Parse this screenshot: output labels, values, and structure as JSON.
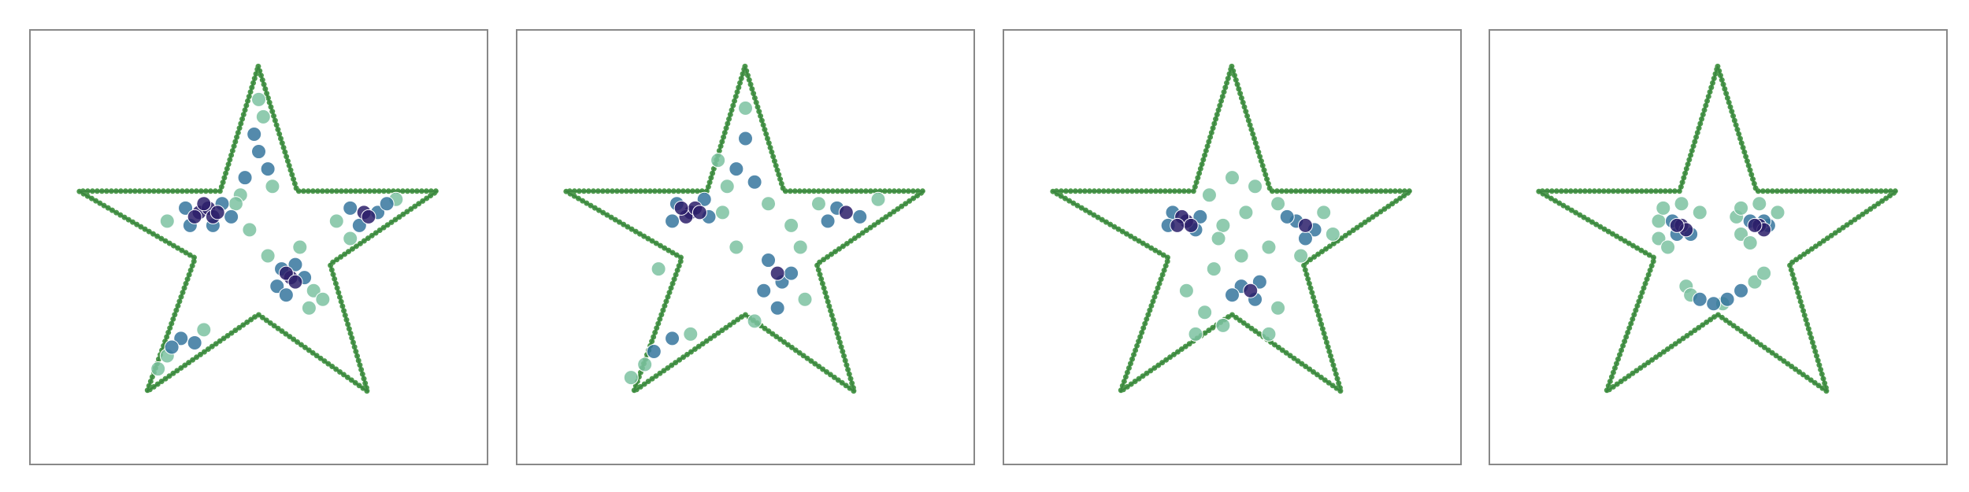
{
  "chart_data": [
    {
      "type": "scatter",
      "xlim": [
        0,
        100
      ],
      "ylim": [
        0,
        100
      ],
      "series": [
        {
          "color": "#2c1f6a",
          "x": [
            37,
            39,
            40,
            36,
            38,
            41,
            57,
            56,
            58,
            73,
            74
          ],
          "y": [
            58,
            59,
            57,
            57,
            60,
            58,
            43,
            44,
            42,
            58,
            57
          ]
        },
        {
          "color": "#36769d",
          "x": [
            34,
            42,
            44,
            35,
            40,
            47,
            50,
            49,
            52,
            55,
            60,
            54,
            58,
            56,
            70,
            76,
            72,
            78,
            33,
            36,
            31
          ],
          "y": [
            59,
            60,
            57,
            55,
            55,
            66,
            72,
            76,
            68,
            45,
            43,
            41,
            46,
            39,
            59,
            58,
            55,
            60,
            29,
            28,
            27
          ]
        },
        {
          "color": "#7dc2a1",
          "x": [
            30,
            46,
            51,
            53,
            48,
            62,
            61,
            64,
            52,
            67,
            80,
            70,
            30,
            38,
            28,
            45,
            50,
            59
          ],
          "y": [
            56,
            62,
            80,
            64,
            54,
            40,
            36,
            38,
            48,
            56,
            61,
            52,
            25,
            31,
            22,
            60,
            84,
            50
          ]
        }
      ]
    },
    {
      "type": "scatter",
      "xlim": [
        0,
        100
      ],
      "ylim": [
        0,
        100
      ],
      "series": [
        {
          "color": "#2c1f6a",
          "x": [
            38,
            37,
            39,
            40,
            36,
            57,
            72
          ],
          "y": [
            58,
            57,
            59,
            58,
            59,
            44,
            58
          ]
        },
        {
          "color": "#36769d",
          "x": [
            35,
            42,
            41,
            34,
            48,
            50,
            52,
            55,
            58,
            54,
            60,
            57,
            70,
            75,
            68,
            30,
            34
          ],
          "y": [
            60,
            57,
            61,
            56,
            68,
            75,
            65,
            47,
            42,
            40,
            44,
            36,
            59,
            57,
            56,
            26,
            29
          ]
        },
        {
          "color": "#7dc2a1",
          "x": [
            46,
            50,
            45,
            62,
            48,
            63,
            52,
            66,
            79,
            31,
            28,
            38,
            55,
            44,
            60,
            25
          ],
          "y": [
            64,
            82,
            58,
            50,
            50,
            38,
            33,
            60,
            61,
            45,
            23,
            30,
            60,
            70,
            55,
            20
          ]
        }
      ]
    },
    {
      "type": "scatter",
      "xlim": [
        0,
        100
      ],
      "ylim": [
        0,
        100
      ],
      "series": [
        {
          "color": "#2c1f6a",
          "x": [
            40,
            39,
            41,
            38,
            66,
            54
          ],
          "y": [
            56,
            57,
            55,
            55,
            55,
            40
          ]
        },
        {
          "color": "#36769d",
          "x": [
            37,
            43,
            42,
            36,
            64,
            68,
            66,
            52,
            55,
            56,
            50,
            62
          ],
          "y": [
            58,
            57,
            54,
            55,
            56,
            54,
            52,
            41,
            38,
            42,
            39,
            57
          ]
        },
        {
          "color": "#7dc2a1",
          "x": [
            45,
            50,
            55,
            60,
            48,
            58,
            52,
            70,
            72,
            46,
            44,
            48,
            60,
            58,
            40,
            42,
            47,
            53,
            65
          ],
          "y": [
            62,
            66,
            64,
            60,
            55,
            50,
            48,
            58,
            53,
            45,
            35,
            32,
            36,
            30,
            40,
            30,
            52,
            58,
            48
          ]
        }
      ]
    },
    {
      "type": "scatter",
      "xlim": [
        0,
        100
      ],
      "ylim": [
        0,
        100
      ],
      "series": [
        {
          "color": "#2c1f6a",
          "x": [
            42,
            43,
            41,
            59,
            60,
            58
          ],
          "y": [
            55,
            54,
            55,
            55,
            54,
            55
          ]
        },
        {
          "color": "#36769d",
          "x": [
            40,
            44,
            41,
            57,
            61,
            60,
            46,
            49,
            52,
            55
          ],
          "y": [
            56,
            53,
            53,
            56,
            55,
            56,
            38,
            37,
            38,
            40
          ]
        },
        {
          "color": "#7dc2a1",
          "x": [
            37,
            38,
            42,
            46,
            37,
            39,
            54,
            55,
            59,
            63,
            55,
            57,
            43,
            44,
            58,
            60,
            51
          ],
          "y": [
            56,
            59,
            60,
            58,
            52,
            50,
            57,
            59,
            60,
            58,
            53,
            51,
            41,
            39,
            42,
            44,
            37
          ]
        }
      ]
    }
  ]
}
